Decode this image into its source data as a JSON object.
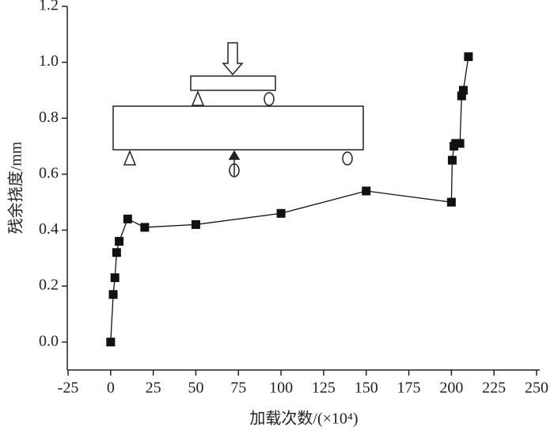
{
  "chart_data": {
    "type": "line",
    "x_label": "加载次数/(×10⁴)",
    "y_label": "残余挠度/mm",
    "x": [
      0,
      1.5,
      2.5,
      3.5,
      5,
      10,
      20,
      50,
      100,
      150,
      200,
      200.5,
      201.5,
      202.5,
      205,
      206,
      207,
      210
    ],
    "series": [
      {
        "color": "#111111",
        "values": [
          0,
          0.17,
          0.23,
          0.32,
          0.36,
          0.44,
          0.41,
          0.42,
          0.46,
          0.54,
          0.5,
          0.65,
          0.7,
          0.71,
          0.71,
          0.88,
          0.9,
          1.02
        ]
      }
    ],
    "xlim": [
      -25,
      250
    ],
    "ylim": [
      -0.1,
      1.2
    ],
    "xticks": [
      -25,
      0,
      25,
      50,
      75,
      100,
      125,
      150,
      175,
      200,
      225,
      250
    ],
    "yticks": [
      {
        "value": 0,
        "label": "0.0"
      },
      0.2,
      0.4,
      0.6,
      0.8,
      {
        "value": 1,
        "label": "1.0"
      },
      1.2
    ]
  }
}
